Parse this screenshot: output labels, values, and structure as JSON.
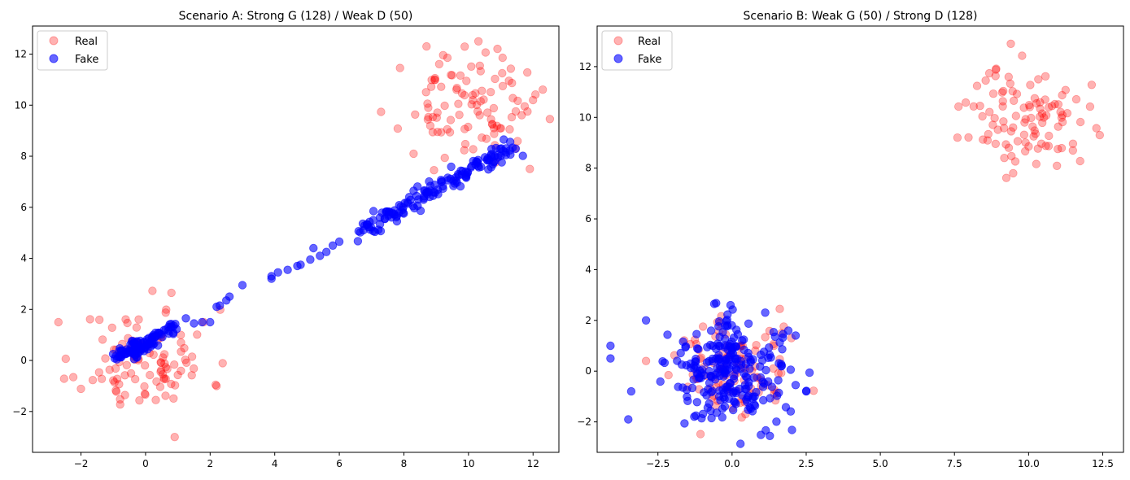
{
  "colors": {
    "real": "#ff0000",
    "fake": "#0000ff",
    "axis": "#000000",
    "legend_border": "#cccccc"
  },
  "chart_data": [
    {
      "type": "scatter",
      "title": "Scenario A: Strong G (128) / Weak D (50)",
      "xlabel": "",
      "ylabel": "",
      "xlim": [
        -3.5,
        12.8
      ],
      "ylim": [
        -3.6,
        13.1
      ],
      "xticks": [
        -2,
        0,
        2,
        4,
        6,
        8,
        10,
        12
      ],
      "xtick_labels": [
        "−2",
        "0",
        "2",
        "4",
        "6",
        "8",
        "10",
        "12"
      ],
      "yticks": [
        -2,
        0,
        2,
        4,
        6,
        8,
        10,
        12
      ],
      "ytick_labels": [
        "−2",
        "0",
        "2",
        "4",
        "6",
        "8",
        "10",
        "12"
      ],
      "grid": false,
      "legend": {
        "position": "top-left",
        "entries": [
          "Real",
          "Fake"
        ]
      },
      "series": [
        {
          "name": "Real",
          "color": "#ff0000",
          "alpha": 0.3,
          "clusters": [
            {
              "center": [
                0.0,
                0.0
              ],
              "std": 1.0,
              "count": 100,
              "seed": 11
            },
            {
              "center": [
                10.0,
                10.0
              ],
              "std": 1.0,
              "count": 100,
              "seed": 23
            }
          ],
          "extra_points": [
            [
              -2.7,
              1.5
            ],
            [
              0.9,
              -3.0
            ],
            [
              1.8,
              1.5
            ],
            [
              8.3,
              8.1
            ],
            [
              8.7,
              12.3
            ],
            [
              11.9,
              7.5
            ],
            [
              12.0,
              10.2
            ],
            [
              0.8,
              2.65
            ]
          ]
        },
        {
          "name": "Fake",
          "color": "#0000ff",
          "alpha": 0.6,
          "line_segments": [
            {
              "from": [
                -1.0,
                0.1
              ],
              "to": [
                1.0,
                1.35
              ],
              "count": 70,
              "jitter": 0.12,
              "seed": 5
            },
            {
              "from": [
                -0.5,
                0.2
              ],
              "to": [
                0.5,
                1.0
              ],
              "count": 30,
              "jitter": 0.15,
              "seed": 6
            },
            {
              "from": [
                6.6,
                5.0
              ],
              "to": [
                11.4,
                8.4
              ],
              "count": 150,
              "jitter": 0.18,
              "seed": 7
            }
          ],
          "points": [
            [
              1.25,
              1.65
            ],
            [
              1.5,
              1.45
            ],
            [
              1.75,
              1.5
            ],
            [
              2.0,
              1.5
            ],
            [
              2.3,
              2.15
            ],
            [
              2.6,
              2.5
            ],
            [
              3.0,
              2.95
            ],
            [
              2.2,
              2.1
            ],
            [
              2.5,
              2.35
            ],
            [
              3.9,
              3.2
            ],
            [
              4.1,
              3.45
            ],
            [
              4.4,
              3.55
            ],
            [
              4.7,
              3.7
            ],
            [
              4.8,
              3.75
            ],
            [
              5.2,
              4.4
            ],
            [
              5.4,
              4.1
            ],
            [
              5.6,
              4.25
            ],
            [
              5.8,
              4.5
            ],
            [
              6.0,
              4.65
            ],
            [
              3.9,
              3.3
            ],
            [
              5.1,
              3.95
            ]
          ]
        }
      ]
    },
    {
      "type": "scatter",
      "title": "Scenario B: Weak G (50) / Strong D (128)",
      "xlabel": "",
      "ylabel": "",
      "xlim": [
        -4.55,
        13.2
      ],
      "ylim": [
        -3.2,
        13.6
      ],
      "xticks": [
        -2.5,
        0,
        2.5,
        5,
        7.5,
        10,
        12.5
      ],
      "xtick_labels": [
        "−2.5",
        "0.0",
        "2.5",
        "5.0",
        "7.5",
        "10.0",
        "12.5"
      ],
      "yticks": [
        -2,
        0,
        2,
        4,
        6,
        8,
        10,
        12
      ],
      "ytick_labels": [
        "−2",
        "0",
        "2",
        "4",
        "6",
        "8",
        "10",
        "12"
      ],
      "grid": false,
      "legend": {
        "position": "top-left",
        "entries": [
          "Real",
          "Fake"
        ]
      },
      "series": [
        {
          "name": "Real",
          "color": "#ff0000",
          "alpha": 0.3,
          "clusters": [
            {
              "center": [
                0.0,
                0.0
              ],
              "std": 1.0,
              "count": 100,
              "seed": 31
            },
            {
              "center": [
                10.0,
                10.0
              ],
              "std": 1.0,
              "count": 100,
              "seed": 37
            }
          ],
          "extra_points": [
            [
              -2.9,
              0.4
            ],
            [
              2.0,
              1.3
            ],
            [
              7.6,
              9.2
            ],
            [
              12.4,
              9.3
            ],
            [
              9.4,
              12.9
            ]
          ]
        },
        {
          "name": "Fake",
          "color": "#0000ff",
          "alpha": 0.6,
          "clusters": [
            {
              "center": [
                0.0,
                0.0
              ],
              "std": 1.0,
              "count": 250,
              "seed": 41
            }
          ],
          "extra_points": [
            [
              -4.1,
              1.0
            ],
            [
              -4.1,
              0.5
            ],
            [
              -3.5,
              -1.9
            ],
            [
              -2.9,
              2.0
            ],
            [
              -3.4,
              -0.8
            ],
            [
              2.5,
              -0.8
            ],
            [
              -0.6,
              2.65
            ],
            [
              -0.05,
              2.6
            ]
          ]
        }
      ]
    }
  ]
}
